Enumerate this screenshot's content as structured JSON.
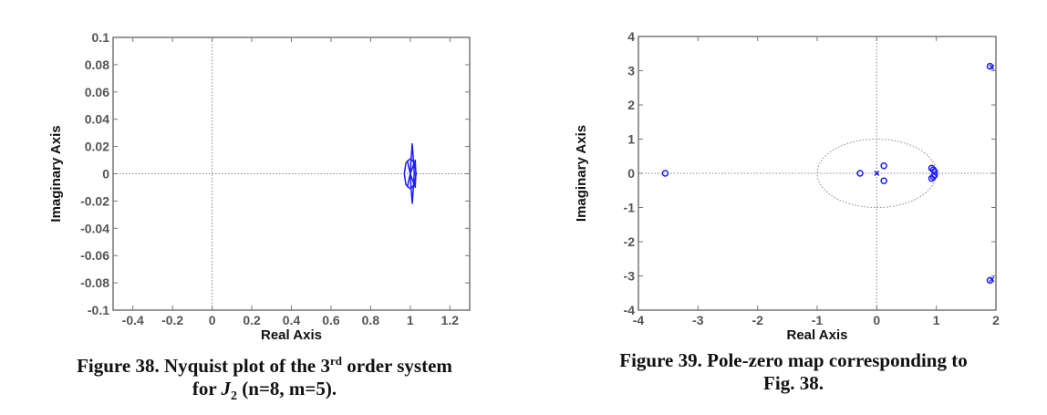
{
  "chart_data": [
    {
      "type": "line",
      "xlabel": "Real Axis",
      "ylabel": "Imaginary Axis",
      "xlim": [
        -0.5,
        1.3
      ],
      "ylim": [
        -0.1,
        0.1
      ],
      "xticks": [
        -0.4,
        -0.2,
        0,
        0.2,
        0.4,
        0.6,
        0.8,
        1,
        1.2
      ],
      "yticks": [
        -0.1,
        -0.08,
        -0.06,
        -0.04,
        -0.02,
        0,
        0.02,
        0.04,
        0.06,
        0.08,
        0.1
      ],
      "grid": false,
      "zero_lines": true,
      "color": "#1a1aff",
      "series": [
        {
          "points": [
            [
              1.03,
              0
            ],
            [
              1.022,
              0.008
            ],
            [
              1.0,
              0.011
            ],
            [
              0.978,
              0.008
            ],
            [
              0.97,
              0
            ],
            [
              0.978,
              -0.008
            ],
            [
              1.0,
              -0.011
            ],
            [
              1.022,
              -0.008
            ],
            [
              1.03,
              0
            ]
          ]
        },
        {
          "points": [
            [
              1.01,
              -0.022
            ],
            [
              1.016,
              -0.01
            ],
            [
              1.02,
              0
            ],
            [
              1.016,
              0.01
            ],
            [
              1.01,
              0.022
            ],
            [
              1.004,
              0.01
            ],
            [
              1.0,
              0
            ],
            [
              1.004,
              -0.01
            ],
            [
              1.01,
              -0.022
            ]
          ]
        },
        {
          "points": [
            [
              0.985,
              0.01
            ],
            [
              1.0,
              0
            ],
            [
              1.025,
              -0.01
            ],
            [
              1.028,
              0
            ],
            [
              1.025,
              0.01
            ],
            [
              1.0,
              0
            ],
            [
              0.985,
              -0.01
            ]
          ]
        }
      ],
      "caption": {
        "line1_a": "Figure 38. Nyquist plot of the 3",
        "line1_sup": "rd",
        "line1_b": " order system",
        "line2_a": "for ",
        "line2_var": "J",
        "line2_sub": "2",
        "line2_b": " (n=8, m=5)."
      }
    },
    {
      "type": "scatter",
      "xlabel": "Real Axis",
      "ylabel": "Imaginary Axis",
      "xlim": [
        -4,
        2
      ],
      "ylim": [
        -4,
        4
      ],
      "xticks": [
        -4,
        -3,
        -2,
        -1,
        0,
        1,
        2
      ],
      "yticks": [
        -4,
        -3,
        -2,
        -1,
        0,
        1,
        2,
        3,
        4
      ],
      "grid": false,
      "unit_circle": true,
      "color": "#1a1aff",
      "zeros": [
        [
          -3.55,
          0
        ],
        [
          -0.28,
          0
        ],
        [
          0.12,
          0.22
        ],
        [
          0.12,
          -0.22
        ],
        [
          1.9,
          3.13
        ],
        [
          1.9,
          -3.13
        ],
        [
          0.92,
          0.15
        ],
        [
          0.92,
          -0.15
        ],
        [
          0.97,
          0.05
        ],
        [
          0.97,
          -0.05
        ],
        [
          0.95,
          0.1
        ],
        [
          0.95,
          -0.1
        ]
      ],
      "poles": [
        [
          0,
          0
        ],
        [
          1.93,
          3.1
        ],
        [
          1.93,
          -3.1
        ]
      ],
      "caption": {
        "line1": "Figure 39. Pole-zero map corresponding to",
        "line2": "Fig. 38."
      }
    }
  ]
}
